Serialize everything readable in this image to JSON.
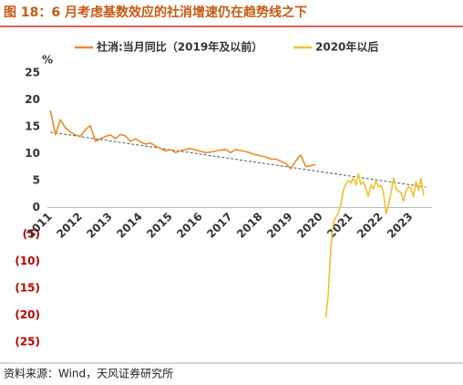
{
  "chart_data": {
    "type": "line",
    "title": "图 18：6 月考虑基数效应的社消增速仍在趋势线之下",
    "y_unit": "%",
    "source": "资料来源：Wind，天风证券研究所",
    "xlim": [
      2010.9,
      2023.7
    ],
    "xticks": [
      2011,
      2012,
      2013,
      2014,
      2015,
      2016,
      2017,
      2018,
      2019,
      2020,
      2021,
      2022,
      2023
    ],
    "ylim": [
      -25,
      25
    ],
    "yticks": [
      {
        "value": -25,
        "label": "(25)"
      },
      {
        "value": -20,
        "label": "(20)"
      },
      {
        "value": -15,
        "label": "(15)"
      },
      {
        "value": -10,
        "label": "(10)"
      },
      {
        "value": -5,
        "label": "(5)"
      },
      0,
      5,
      10,
      15,
      20,
      25
    ],
    "negative_tick_color": "#c00000",
    "series": [
      {
        "name": "社消:当月同比（2019年及以前）",
        "color": "#ee8a2c",
        "x": [
          2011,
          2011.17,
          2011.33,
          2011.5,
          2011.67,
          2011.83,
          2012,
          2012.17,
          2012.33,
          2012.5,
          2012.67,
          2012.83,
          2013,
          2013.17,
          2013.33,
          2013.5,
          2013.67,
          2013.83,
          2014,
          2014.17,
          2014.33,
          2014.5,
          2014.67,
          2014.83,
          2015,
          2015.17,
          2015.33,
          2015.5,
          2015.67,
          2015.83,
          2016,
          2016.17,
          2016.33,
          2016.5,
          2016.67,
          2016.83,
          2017,
          2017.17,
          2017.33,
          2017.5,
          2017.67,
          2017.83,
          2018,
          2018.17,
          2018.33,
          2018.5,
          2018.67,
          2018.83,
          2019,
          2019.17,
          2019.33,
          2019.5,
          2019.67,
          2019.83
        ],
        "values": [
          18,
          13.5,
          16.3,
          14.8,
          14,
          13.5,
          13.2,
          14.5,
          15.2,
          12.3,
          12.8,
          13.2,
          13.5,
          12.8,
          13.6,
          13.3,
          12.3,
          12.8,
          12.2,
          11.8,
          12,
          11.4,
          11,
          10.5,
          10.8,
          10.2,
          10.6,
          10.8,
          11,
          10.7,
          10.5,
          10.2,
          10.3,
          10.5,
          10.7,
          10.8,
          10.2,
          10.8,
          10.6,
          10.4,
          10.1,
          9.8,
          9.6,
          9.4,
          9,
          9,
          8.6,
          8.2,
          7.2,
          8.7,
          9.8,
          7.6,
          7.8,
          8
        ]
      },
      {
        "name": "2020年以后",
        "color": "#f2c12e",
        "x": [
          2020.17,
          2020.25,
          2020.33,
          2020.42,
          2020.5,
          2020.58,
          2020.67,
          2020.75,
          2020.83,
          2020.92,
          2021,
          2021.08,
          2021.17,
          2021.25,
          2021.33,
          2021.42,
          2021.5,
          2021.58,
          2021.67,
          2021.75,
          2021.83,
          2021.92,
          2022,
          2022.08,
          2022.17,
          2022.25,
          2022.33,
          2022.42,
          2022.5,
          2022.58,
          2022.67,
          2022.75,
          2022.83,
          2022.92,
          2023,
          2023.08,
          2023.17,
          2023.25,
          2023.33,
          2023.42
        ],
        "values": [
          -20.5,
          -15.8,
          -7.5,
          -2.8,
          -1.8,
          -1.1,
          0.5,
          3.3,
          4.3,
          5,
          4.6,
          5.5,
          4.2,
          6.3,
          4.3,
          4.8,
          3.5,
          2.1,
          4.2,
          3.4,
          4.9,
          3.9,
          4.1,
          3,
          -1.2,
          0.4,
          2.6,
          5.5,
          3.6,
          3,
          2.8,
          1.2,
          3,
          3.9,
          3.5,
          2,
          4.8,
          3.2,
          5.5,
          2.2
        ]
      }
    ],
    "trend": {
      "x": [
        2011,
        2023.5
      ],
      "values": [
        14,
        3.8
      ],
      "color": "#444444"
    }
  }
}
